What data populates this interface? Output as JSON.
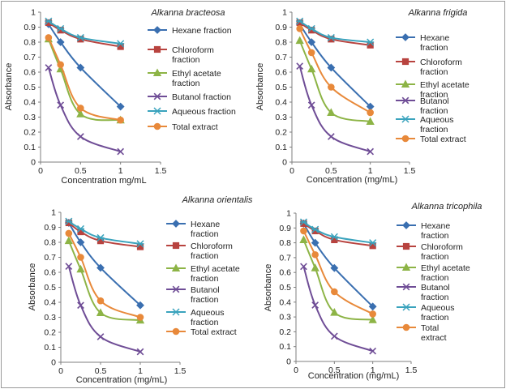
{
  "chart_data": [
    {
      "type": "line",
      "title": "Alkanna bracteosa",
      "xlabel": "Concentration mg/mL",
      "ylabel": "Absorbance",
      "xlim": [
        0,
        1.5
      ],
      "ylim": [
        0,
        1.0
      ],
      "xticks": [
        "0",
        "0.5",
        "1",
        "1.5"
      ],
      "yticks": [
        "0",
        "0.1",
        "0.2",
        "0.3",
        "0.4",
        "0.5",
        "0.6",
        "0.7",
        "0.8",
        "0.9",
        "1"
      ],
      "legend_position": "right",
      "x": [
        0.1,
        0.25,
        0.5,
        1.0
      ],
      "series": [
        {
          "name": "Hexane fraction",
          "color": "#3a6fb0",
          "marker": "diamond",
          "values": [
            0.92,
            0.8,
            0.63,
            0.37
          ]
        },
        {
          "name": "Chloroform fraction",
          "color": "#b8433f",
          "marker": "square",
          "values": [
            0.93,
            0.88,
            0.82,
            0.77
          ]
        },
        {
          "name": "Ethyl acetate fraction",
          "color": "#8db446",
          "marker": "triangle",
          "values": [
            0.82,
            0.62,
            0.32,
            0.28
          ]
        },
        {
          "name": "Butanol fraction",
          "color": "#6f4d96",
          "marker": "x",
          "values": [
            0.63,
            0.38,
            0.17,
            0.07
          ]
        },
        {
          "name": "Aqueous fraction",
          "color": "#3aa3bd",
          "marker": "star",
          "values": [
            0.94,
            0.89,
            0.83,
            0.79
          ]
        },
        {
          "name": "Total extract",
          "color": "#e8893a",
          "marker": "circle",
          "values": [
            0.83,
            0.65,
            0.36,
            0.28
          ]
        }
      ]
    },
    {
      "type": "line",
      "title": "Alkanna  frigida",
      "xlabel": "Concentration (mg/mL)",
      "ylabel": "Absorbance",
      "xlim": [
        0,
        1.5
      ],
      "ylim": [
        0,
        1.0
      ],
      "xticks": [
        "0",
        "0.5",
        "1",
        "1.5"
      ],
      "yticks": [
        "0",
        "0.1",
        "0.2",
        "0.3",
        "0.4",
        "0.5",
        "0.6",
        "0.7",
        "0.8",
        "0.9",
        "1"
      ],
      "legend_position": "right",
      "x": [
        0.1,
        0.25,
        0.5,
        1.0
      ],
      "series": [
        {
          "name": "Hexane fraction",
          "color": "#3a6fb0",
          "marker": "diamond",
          "values": [
            0.92,
            0.8,
            0.63,
            0.37
          ]
        },
        {
          "name": "Chloroform fraction",
          "color": "#b8433f",
          "marker": "square",
          "values": [
            0.93,
            0.88,
            0.82,
            0.78
          ]
        },
        {
          "name": "Ethyl acetate fraction",
          "color": "#8db446",
          "marker": "triangle",
          "values": [
            0.81,
            0.62,
            0.33,
            0.27
          ]
        },
        {
          "name": "Butanol fraction",
          "color": "#6f4d96",
          "marker": "x",
          "values": [
            0.64,
            0.38,
            0.17,
            0.07
          ]
        },
        {
          "name": "Aqueous fraction",
          "color": "#3aa3bd",
          "marker": "star",
          "values": [
            0.94,
            0.89,
            0.83,
            0.8
          ]
        },
        {
          "name": "Total extract",
          "color": "#e8893a",
          "marker": "circle",
          "values": [
            0.89,
            0.73,
            0.5,
            0.33
          ]
        }
      ]
    },
    {
      "type": "line",
      "title": "Alkanna  orientalis",
      "xlabel": "Concentration (mg/mL)",
      "ylabel": "Absorbance",
      "xlim": [
        0,
        1.5
      ],
      "ylim": [
        0,
        1.0
      ],
      "xticks": [
        "0",
        "0.5",
        "1",
        "1.5"
      ],
      "yticks": [
        "0",
        "0.1",
        "0.2",
        "0.3",
        "0.4",
        "0.5",
        "0.6",
        "0.7",
        "0.8",
        "0.9",
        "1"
      ],
      "legend_position": "right",
      "x": [
        0.1,
        0.25,
        0.5,
        1.0
      ],
      "series": [
        {
          "name": "Hexane fraction",
          "color": "#3a6fb0",
          "marker": "diamond",
          "values": [
            0.93,
            0.8,
            0.63,
            0.38
          ]
        },
        {
          "name": "Chloroform fraction",
          "color": "#b8433f",
          "marker": "square",
          "values": [
            0.93,
            0.87,
            0.81,
            0.77
          ]
        },
        {
          "name": "Ethyl acetate fraction",
          "color": "#8db446",
          "marker": "triangle",
          "values": [
            0.81,
            0.62,
            0.33,
            0.28
          ]
        },
        {
          "name": "Butanol fraction",
          "color": "#6f4d96",
          "marker": "x",
          "values": [
            0.64,
            0.38,
            0.17,
            0.07
          ]
        },
        {
          "name": "Aqueous fraction",
          "color": "#3aa3bd",
          "marker": "star",
          "values": [
            0.94,
            0.89,
            0.83,
            0.79
          ]
        },
        {
          "name": "Total extract",
          "color": "#e8893a",
          "marker": "circle",
          "values": [
            0.86,
            0.7,
            0.41,
            0.3
          ]
        }
      ]
    },
    {
      "type": "line",
      "title": "Alkanna  tricophila",
      "xlabel": "Concentration (mg/mL)",
      "ylabel": "Absorbance",
      "xlim": [
        0,
        1.5
      ],
      "ylim": [
        0,
        1.0
      ],
      "xticks": [
        "0",
        "0.5",
        "1",
        "1.5"
      ],
      "yticks": [
        "0",
        "0.1",
        "0.2",
        "0.3",
        "0.4",
        "0.5",
        "0.6",
        "0.7",
        "0.8",
        "0.9",
        "1"
      ],
      "legend_position": "right",
      "x": [
        0.1,
        0.25,
        0.5,
        1.0
      ],
      "series": [
        {
          "name": "Hexane fraction",
          "color": "#3a6fb0",
          "marker": "diamond",
          "values": [
            0.93,
            0.8,
            0.63,
            0.37
          ]
        },
        {
          "name": "Chloroform fraction",
          "color": "#b8433f",
          "marker": "square",
          "values": [
            0.93,
            0.88,
            0.82,
            0.78
          ]
        },
        {
          "name": "Ethyl acetate fraction",
          "color": "#8db446",
          "marker": "triangle",
          "values": [
            0.82,
            0.63,
            0.33,
            0.28
          ]
        },
        {
          "name": "Butanol fraction",
          "color": "#6f4d96",
          "marker": "x",
          "values": [
            0.64,
            0.38,
            0.17,
            0.07
          ]
        },
        {
          "name": "Aqueous fraction",
          "color": "#3aa3bd",
          "marker": "star",
          "values": [
            0.94,
            0.89,
            0.84,
            0.8
          ]
        },
        {
          "name": "Total extract",
          "color": "#e8893a",
          "marker": "circle",
          "values": [
            0.88,
            0.72,
            0.47,
            0.32
          ]
        }
      ]
    }
  ]
}
